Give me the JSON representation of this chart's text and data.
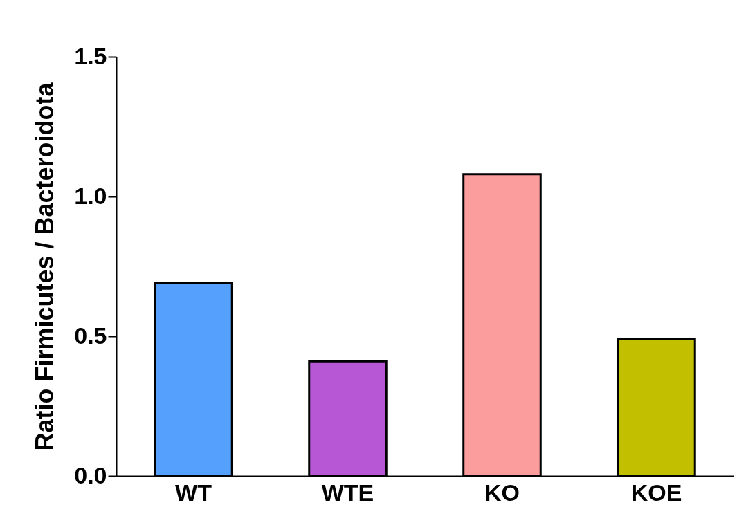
{
  "chart_data": {
    "type": "bar",
    "ylabel": "Ratio Firmicutes / Bacteroidota",
    "categories": [
      "WT",
      "WTE",
      "KO",
      "KOE"
    ],
    "values": [
      0.69,
      0.41,
      1.08,
      0.49
    ],
    "colors": [
      "#559ffd",
      "#b857d6",
      "#fb9d9d",
      "#c2be00"
    ],
    "ylim": [
      0,
      1.5
    ],
    "yticks": [
      {
        "value": 0,
        "label": "0.0"
      },
      {
        "value": 0.5,
        "label": "0.5"
      },
      {
        "value": 1,
        "label": "1.0"
      },
      {
        "value": 1.5,
        "label": "1.5"
      }
    ],
    "grid": false
  }
}
